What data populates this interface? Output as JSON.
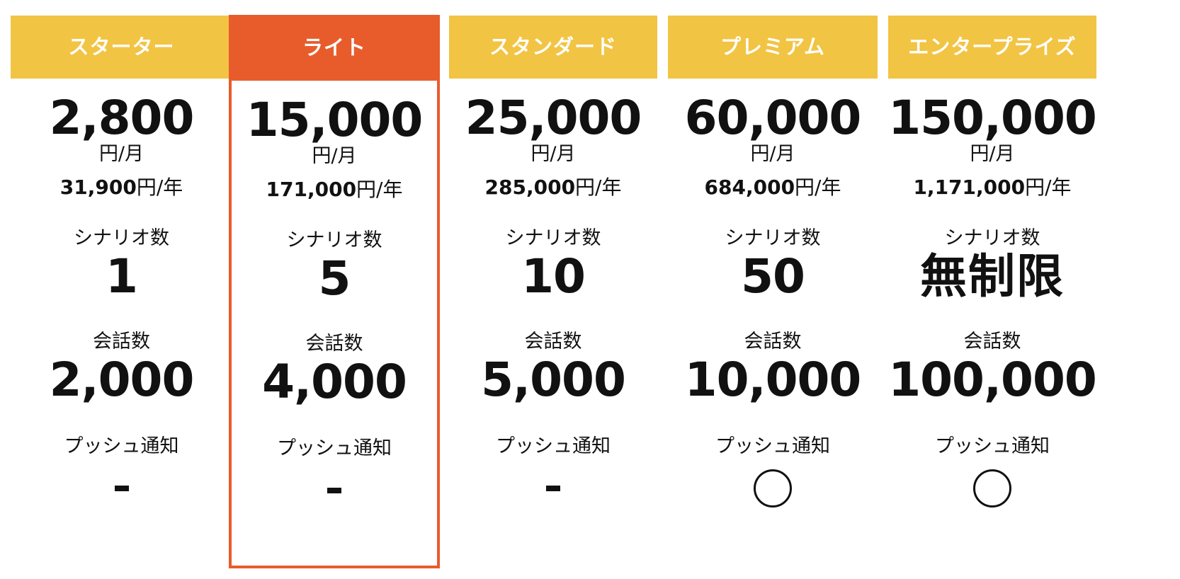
{
  "colors": {
    "header_default": "#f2c443",
    "header_highlight": "#e85c2c",
    "highlight_border": "#e85c2c"
  },
  "labels": {
    "per_month": "円/月",
    "per_year_suffix": "円/年",
    "scenario": "シナリオ数",
    "conversation": "会話数",
    "push": "プッシュ通知"
  },
  "plans": [
    {
      "name": "スターター",
      "price_month": "2,800",
      "price_year": "31,900",
      "scenarios": "1",
      "conversations": "2,000",
      "push": "-",
      "push_icon": "dash-icon",
      "highlighted": false
    },
    {
      "name": "ライト",
      "price_month": "15,000",
      "price_year": "171,000",
      "scenarios": "5",
      "conversations": "4,000",
      "push": "-",
      "push_icon": "dash-icon",
      "highlighted": true
    },
    {
      "name": "スタンダード",
      "price_month": "25,000",
      "price_year": "285,000",
      "scenarios": "10",
      "conversations": "5,000",
      "push": "-",
      "push_icon": "dash-icon",
      "highlighted": false
    },
    {
      "name": "プレミアム",
      "price_month": "60,000",
      "price_year": "684,000",
      "scenarios": "50",
      "conversations": "10,000",
      "push": "◯",
      "push_icon": "circle-icon",
      "highlighted": false
    },
    {
      "name": "エンタープライズ",
      "price_month": "150,000",
      "price_year": "1,171,000",
      "scenarios": "無制限",
      "conversations": "100,000",
      "push": "◯",
      "push_icon": "circle-icon",
      "highlighted": false
    }
  ]
}
